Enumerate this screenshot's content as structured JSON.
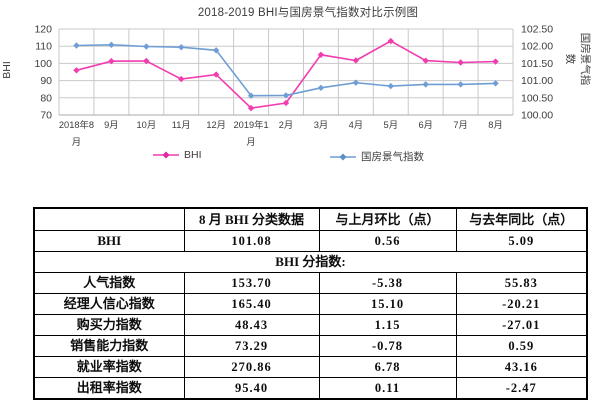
{
  "chart_data": {
    "type": "line",
    "title": "2018-2019 BHI与国房景气指数对比示例图",
    "ylabel_left": "BHI",
    "ylabel_right": "国房景气指数",
    "categories": [
      "2018年8月",
      "9月",
      "10月",
      "11月",
      "12月",
      "2019年1月",
      "2月",
      "3月",
      "4月",
      "5月",
      "6月",
      "7月",
      "8月"
    ],
    "category_labels": [
      [
        "2018年8",
        "月"
      ],
      [
        "9月"
      ],
      [
        "10月"
      ],
      [
        "11月"
      ],
      [
        "12月"
      ],
      [
        "2019年1",
        "月"
      ],
      [
        "2月"
      ],
      [
        "3月"
      ],
      [
        "4月"
      ],
      [
        "5月"
      ],
      [
        "6月"
      ],
      [
        "7月"
      ],
      [
        "8月"
      ]
    ],
    "ylim_left": [
      70,
      120
    ],
    "ylim_right": [
      100.0,
      102.5
    ],
    "yticks_left": [
      "120",
      "110",
      "100",
      "90",
      "80",
      "70"
    ],
    "yticks_right": [
      "102.50",
      "102.00",
      "101.50",
      "101.00",
      "100.50",
      "100.00"
    ],
    "grid": true,
    "legend_position": "bottom",
    "series": [
      {
        "name": "BHI",
        "axis": "left",
        "color": "#f23cb0",
        "values": [
          95.99,
          101.3,
          101.4,
          90.9,
          93.5,
          74.0,
          77.0,
          105.0,
          101.7,
          113.0,
          101.6,
          100.52,
          101.08
        ]
      },
      {
        "name": "国房景气指数",
        "axis": "right",
        "color": "#6f9ed5",
        "values": [
          102.02,
          102.04,
          101.99,
          101.97,
          101.88,
          100.56,
          100.57,
          100.79,
          100.94,
          100.84,
          100.89,
          100.89,
          100.92
        ]
      }
    ]
  },
  "table": {
    "headers": [
      "",
      "8 月 BHI 分类数据",
      "与上月环比（点）",
      "与去年同比（点）"
    ],
    "rows": [
      {
        "label": "BHI",
        "span": false,
        "cells": [
          "101.08",
          "0.56",
          "5.09"
        ]
      },
      {
        "label": "BHI 分指数:",
        "span": true,
        "cells": []
      },
      {
        "label": "人气指数",
        "span": false,
        "cells": [
          "153.70",
          "-5.38",
          "55.83"
        ]
      },
      {
        "label": "经理人信心指数",
        "span": false,
        "cells": [
          "165.40",
          "15.10",
          "-20.21"
        ]
      },
      {
        "label": "购买力指数",
        "span": false,
        "cells": [
          "48.43",
          "1.15",
          "-27.01"
        ]
      },
      {
        "label": "销售能力指数",
        "span": false,
        "cells": [
          "73.29",
          "-0.78",
          "0.59"
        ]
      },
      {
        "label": "就业率指数",
        "span": false,
        "cells": [
          "270.86",
          "6.78",
          "43.16"
        ]
      },
      {
        "label": "出租率指数",
        "span": false,
        "cells": [
          "95.40",
          "0.11",
          "-2.47"
        ]
      }
    ]
  },
  "colors": {
    "grid": "#c9c9c9",
    "axis_text": "#3c3c3c",
    "bhi_pink": "#f23cb0",
    "ghi_blue": "#6f9ed5"
  }
}
